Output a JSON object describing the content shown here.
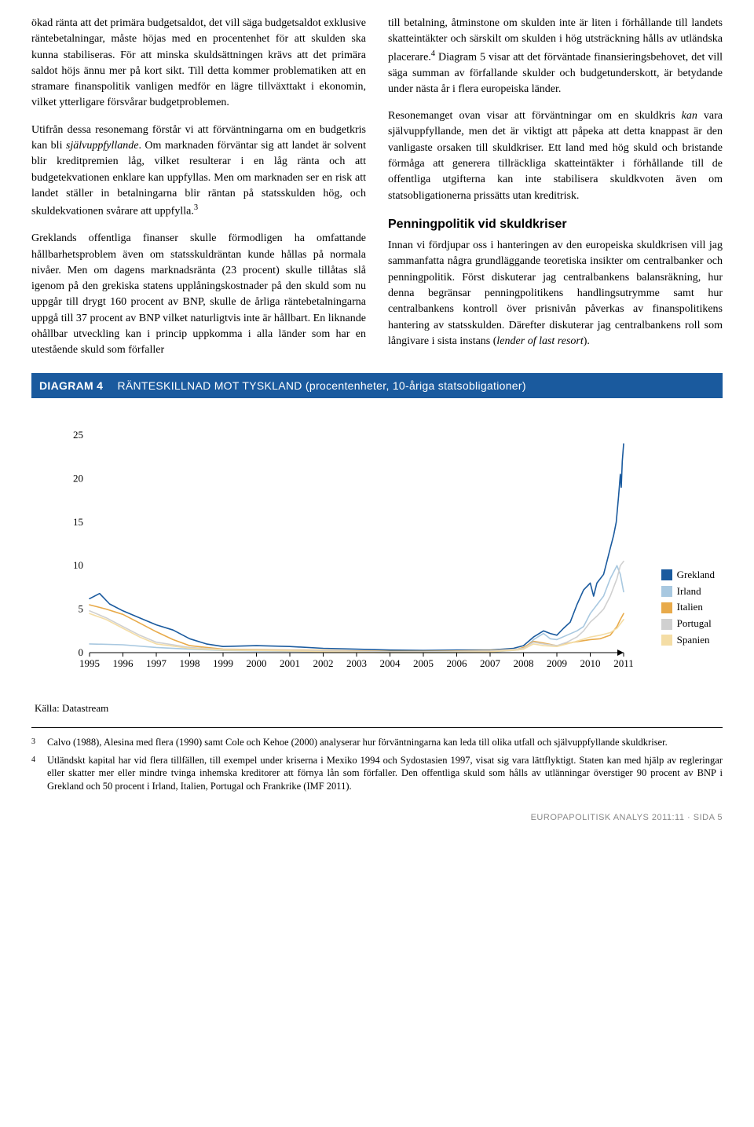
{
  "left": {
    "p1": "ökad ränta att det primära budgetsaldot, det vill säga budgetsaldot exklusive räntebetalningar, måste höjas med en procentenhet för att skulden ska kunna stabiliseras. För att minska skuldsättningen krävs att det primära saldot höjs ännu mer på kort sikt. Till detta kommer problematiken att en stramare finanspolitik vanligen medför en lägre tillväxttakt i ekonomin, vilket ytterligare försvårar budgetproblemen.",
    "p2a": "Utifrån dessa resonemang förstår vi att förväntningarna om en budgetkris kan bli ",
    "p2b": "självuppfyllande",
    "p2c": ". Om marknaden förväntar sig att landet är solvent blir kreditpremien låg, vilket resulterar i en låg ränta och att budgetekvationen enklare kan uppfyllas. Men om marknaden ser en risk att landet ställer in betalningarna blir räntan på statsskulden hög, och skuldekvationen svårare att uppfylla.",
    "p3": "Greklands offentliga finanser skulle förmodligen ha omfattande hållbarhetsproblem även om statsskuldräntan kunde hållas på normala nivåer. Men om dagens marknadsränta (23 procent) skulle tillåtas slå igenom på den grekiska statens upplåningskostnader på den skuld som nu uppgår till drygt 160 procent av BNP, skulle de årliga räntebetalningarna uppgå till 37 procent av BNP vilket naturligtvis inte är hållbart. En liknande ohållbar utveckling kan i princip uppkomma i alla länder som har en utestående skuld som förfaller"
  },
  "right": {
    "p1": "till betalning, åtminstone om skulden inte är liten i förhållande till landets skatteintäkter och särskilt om skulden i hög utsträckning hålls av utländska placerare.",
    "p1b": " Diagram 5 visar att det förväntade finansieringsbehovet, det vill säga summan av förfallande skulder och budgetunderskott, är betydande under nästa år i flera europeiska länder.",
    "p2a": "Resonemanget ovan visar att förväntningar om en skuldkris ",
    "p2b": "kan",
    "p2c": " vara självuppfyllande, men det är viktigt att påpeka att detta knappast är den vanligaste orsaken till skuldkriser. Ett land med hög skuld och bristande förmåga att generera tillräckliga skatteintäkter i förhållande till de offentliga utgifterna kan inte stabilisera skuldkvoten även om statsobligationerna prissätts utan kreditrisk.",
    "h": "Penningpolitik vid skuldkriser",
    "p3a": "Innan vi fördjupar oss i hanteringen av den europeiska skuldkrisen vill jag sammanfatta några grundläggande teoretiska insikter om centralbanker och penningpolitik. Först diskuterar jag centralbankens balansräkning, hur denna begränsar penningpolitikens handlingsutrymme samt hur centralbankens kontroll över prisnivån påverkas av finanspolitikens hantering av statsskulden. Därefter diskuterar jag centralbankens roll som långivare i sista instans (",
    "p3b": "lender of last resort",
    "p3c": ")."
  },
  "chart": {
    "label": "DIAGRAM 4",
    "title": "RÄNTESKILLNAD MOT TYSKLAND (procentenheter, 10-åriga statsobligationer)",
    "type": "line",
    "background_color": "#ffffff",
    "ylim": [
      0,
      26
    ],
    "yticks": [
      0,
      5,
      10,
      15,
      20,
      25
    ],
    "xlabels": [
      "1995",
      "1996",
      "1997",
      "1998",
      "1999",
      "2000",
      "2001",
      "2002",
      "2003",
      "2004",
      "2005",
      "2006",
      "2007",
      "2008",
      "2009",
      "2010",
      "2011"
    ],
    "xrange": [
      0,
      16
    ],
    "axis_color": "#000000",
    "tick_fontsize": 13,
    "line_width": 1.6,
    "series": [
      {
        "name": "Grekland",
        "color": "#1a5a9e",
        "points": [
          [
            0,
            6.2
          ],
          [
            0.3,
            6.8
          ],
          [
            0.6,
            5.6
          ],
          [
            1,
            4.8
          ],
          [
            1.5,
            4.0
          ],
          [
            2,
            3.2
          ],
          [
            2.5,
            2.6
          ],
          [
            3,
            1.6
          ],
          [
            3.5,
            1.0
          ],
          [
            4,
            0.7
          ],
          [
            5,
            0.8
          ],
          [
            6,
            0.7
          ],
          [
            7,
            0.5
          ],
          [
            8,
            0.4
          ],
          [
            9,
            0.3
          ],
          [
            10,
            0.25
          ],
          [
            11,
            0.3
          ],
          [
            12,
            0.3
          ],
          [
            12.7,
            0.5
          ],
          [
            13,
            0.8
          ],
          [
            13.3,
            1.8
          ],
          [
            13.6,
            2.5
          ],
          [
            13.8,
            2.2
          ],
          [
            14,
            2.0
          ],
          [
            14.2,
            2.8
          ],
          [
            14.4,
            3.5
          ],
          [
            14.6,
            5.5
          ],
          [
            14.8,
            7.2
          ],
          [
            15,
            8.0
          ],
          [
            15.1,
            6.5
          ],
          [
            15.2,
            8.0
          ],
          [
            15.3,
            8.5
          ],
          [
            15.4,
            9.0
          ],
          [
            15.5,
            10.5
          ],
          [
            15.6,
            12.0
          ],
          [
            15.7,
            13.5
          ],
          [
            15.78,
            15.0
          ],
          [
            15.85,
            18.0
          ],
          [
            15.9,
            20.5
          ],
          [
            15.93,
            19.0
          ],
          [
            15.96,
            22.0
          ],
          [
            16,
            24.0
          ]
        ]
      },
      {
        "name": "Irland",
        "color": "#a8c8e0",
        "points": [
          [
            0,
            1.0
          ],
          [
            1,
            0.9
          ],
          [
            2,
            0.6
          ],
          [
            3,
            0.4
          ],
          [
            4,
            0.25
          ],
          [
            5,
            0.2
          ],
          [
            6,
            0.15
          ],
          [
            7,
            0.1
          ],
          [
            8,
            0.05
          ],
          [
            9,
            0.0
          ],
          [
            10,
            0.0
          ],
          [
            11,
            0.0
          ],
          [
            12,
            0.05
          ],
          [
            12.8,
            0.3
          ],
          [
            13,
            0.4
          ],
          [
            13.3,
            1.5
          ],
          [
            13.6,
            2.2
          ],
          [
            13.8,
            1.6
          ],
          [
            14,
            1.5
          ],
          [
            14.3,
            2.0
          ],
          [
            14.6,
            2.5
          ],
          [
            14.8,
            3.0
          ],
          [
            15,
            4.5
          ],
          [
            15.2,
            5.5
          ],
          [
            15.4,
            6.5
          ],
          [
            15.6,
            8.5
          ],
          [
            15.8,
            10.0
          ],
          [
            15.9,
            9.0
          ],
          [
            16,
            7.0
          ]
        ]
      },
      {
        "name": "Italien",
        "color": "#e8aa4a",
        "points": [
          [
            0,
            5.5
          ],
          [
            0.5,
            5.0
          ],
          [
            1,
            4.4
          ],
          [
            1.5,
            3.4
          ],
          [
            2,
            2.4
          ],
          [
            2.5,
            1.5
          ],
          [
            3,
            0.8
          ],
          [
            4,
            0.4
          ],
          [
            5,
            0.35
          ],
          [
            6,
            0.3
          ],
          [
            7,
            0.25
          ],
          [
            8,
            0.2
          ],
          [
            9,
            0.15
          ],
          [
            10,
            0.15
          ],
          [
            11,
            0.2
          ],
          [
            12,
            0.25
          ],
          [
            12.8,
            0.4
          ],
          [
            13,
            0.6
          ],
          [
            13.3,
            1.3
          ],
          [
            13.6,
            1.1
          ],
          [
            14,
            0.8
          ],
          [
            14.5,
            1.2
          ],
          [
            15,
            1.5
          ],
          [
            15.3,
            1.6
          ],
          [
            15.6,
            2.0
          ],
          [
            15.8,
            3.0
          ],
          [
            15.9,
            3.8
          ],
          [
            16,
            4.5
          ]
        ]
      },
      {
        "name": "Portugal",
        "color": "#d0d0d0",
        "points": [
          [
            0,
            4.8
          ],
          [
            0.5,
            4.0
          ],
          [
            1,
            3.0
          ],
          [
            1.5,
            2.0
          ],
          [
            2,
            1.2
          ],
          [
            3,
            0.6
          ],
          [
            4,
            0.35
          ],
          [
            5,
            0.3
          ],
          [
            6,
            0.25
          ],
          [
            7,
            0.2
          ],
          [
            8,
            0.15
          ],
          [
            9,
            0.1
          ],
          [
            10,
            0.1
          ],
          [
            11,
            0.15
          ],
          [
            12,
            0.2
          ],
          [
            12.8,
            0.4
          ],
          [
            13,
            0.5
          ],
          [
            13.3,
            1.2
          ],
          [
            13.6,
            1.0
          ],
          [
            14,
            0.8
          ],
          [
            14.3,
            1.2
          ],
          [
            14.6,
            1.8
          ],
          [
            14.8,
            2.5
          ],
          [
            15,
            3.5
          ],
          [
            15.2,
            4.2
          ],
          [
            15.4,
            5.0
          ],
          [
            15.6,
            6.5
          ],
          [
            15.8,
            8.5
          ],
          [
            15.9,
            10.0
          ],
          [
            16,
            10.5
          ]
        ]
      },
      {
        "name": "Spanien",
        "color": "#f4dda5",
        "points": [
          [
            0,
            4.5
          ],
          [
            0.5,
            3.8
          ],
          [
            1,
            2.8
          ],
          [
            1.5,
            1.8
          ],
          [
            2,
            1.0
          ],
          [
            3,
            0.5
          ],
          [
            4,
            0.3
          ],
          [
            5,
            0.25
          ],
          [
            6,
            0.2
          ],
          [
            7,
            0.1
          ],
          [
            8,
            0.05
          ],
          [
            9,
            0.0
          ],
          [
            10,
            0.0
          ],
          [
            11,
            0.05
          ],
          [
            12,
            0.1
          ],
          [
            12.8,
            0.3
          ],
          [
            13,
            0.4
          ],
          [
            13.3,
            1.0
          ],
          [
            13.6,
            0.8
          ],
          [
            14,
            0.7
          ],
          [
            14.5,
            1.2
          ],
          [
            15,
            1.8
          ],
          [
            15.3,
            2.0
          ],
          [
            15.6,
            2.3
          ],
          [
            15.8,
            2.8
          ],
          [
            15.9,
            3.3
          ],
          [
            16,
            3.8
          ]
        ]
      }
    ],
    "legend": [
      "Grekland",
      "Irland",
      "Italien",
      "Portugal",
      "Spanien"
    ],
    "legend_colors": [
      "#1a5a9e",
      "#a8c8e0",
      "#e8aa4a",
      "#d0d0d0",
      "#f4dda5"
    ]
  },
  "source": "Källa: Datastream",
  "footnotes": {
    "fn3_num": "3",
    "fn3": "Calvo (1988), Alesina med flera (1990)  samt Cole och Kehoe (2000) analyserar hur förväntningarna kan leda till olika utfall och självuppfyllande skuldkriser.",
    "fn4_num": "4",
    "fn4": "Utländskt kapital har vid flera tillfällen, till exempel under kriserna i Mexiko 1994 och Sydostasien 1997, visat sig vara lättflyktigt. Staten kan med hjälp av regleringar eller skatter mer eller mindre tvinga inhemska kreditorer att förnya lån som förfaller. Den offentliga skuld som hålls av utlänningar överstiger 90 procent av BNP i Grekland och 50 procent i Irland, Italien, Portugal och Frankrike (IMF 2011)."
  },
  "footer": "EUROPAPOLITISK ANALYS 2011:11 · SIDA 5"
}
